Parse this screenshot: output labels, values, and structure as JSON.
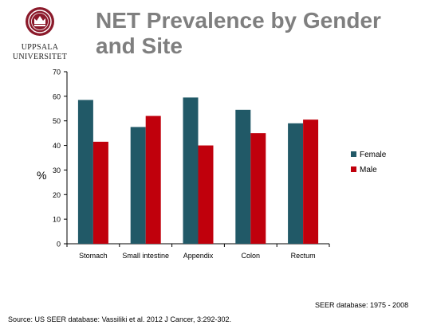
{
  "slide": {
    "logo": {
      "line1": "UPPSALA",
      "line2": "UNIVERSITET"
    },
    "title_line1": "NET Prevalence by Gender",
    "title_line2": "and Site",
    "seer_note": "SEER database: 1975 - 2008",
    "source": "Source: US SEER database: Vassiliki et al. 2012 J Cancer, 3:292-302."
  },
  "colors": {
    "female": "#215967",
    "male": "#c0000c",
    "title": "#7f7f7f",
    "logo": "#8b1a2b"
  },
  "chart_data": {
    "type": "bar",
    "categories": [
      "Stomach",
      "Small intestine",
      "Appendix",
      "Colon",
      "Rectum"
    ],
    "series": [
      {
        "name": "Female",
        "values": [
          58.5,
          47.5,
          59.5,
          54.5,
          49
        ]
      },
      {
        "name": "Male",
        "values": [
          41.5,
          52,
          40,
          45,
          50.5
        ]
      }
    ],
    "ylabel": "%",
    "xlabel": "",
    "ylim": [
      0,
      70
    ],
    "yticks": [
      0,
      10,
      20,
      30,
      40,
      50,
      60,
      70
    ],
    "legend": "right",
    "grid": false
  }
}
